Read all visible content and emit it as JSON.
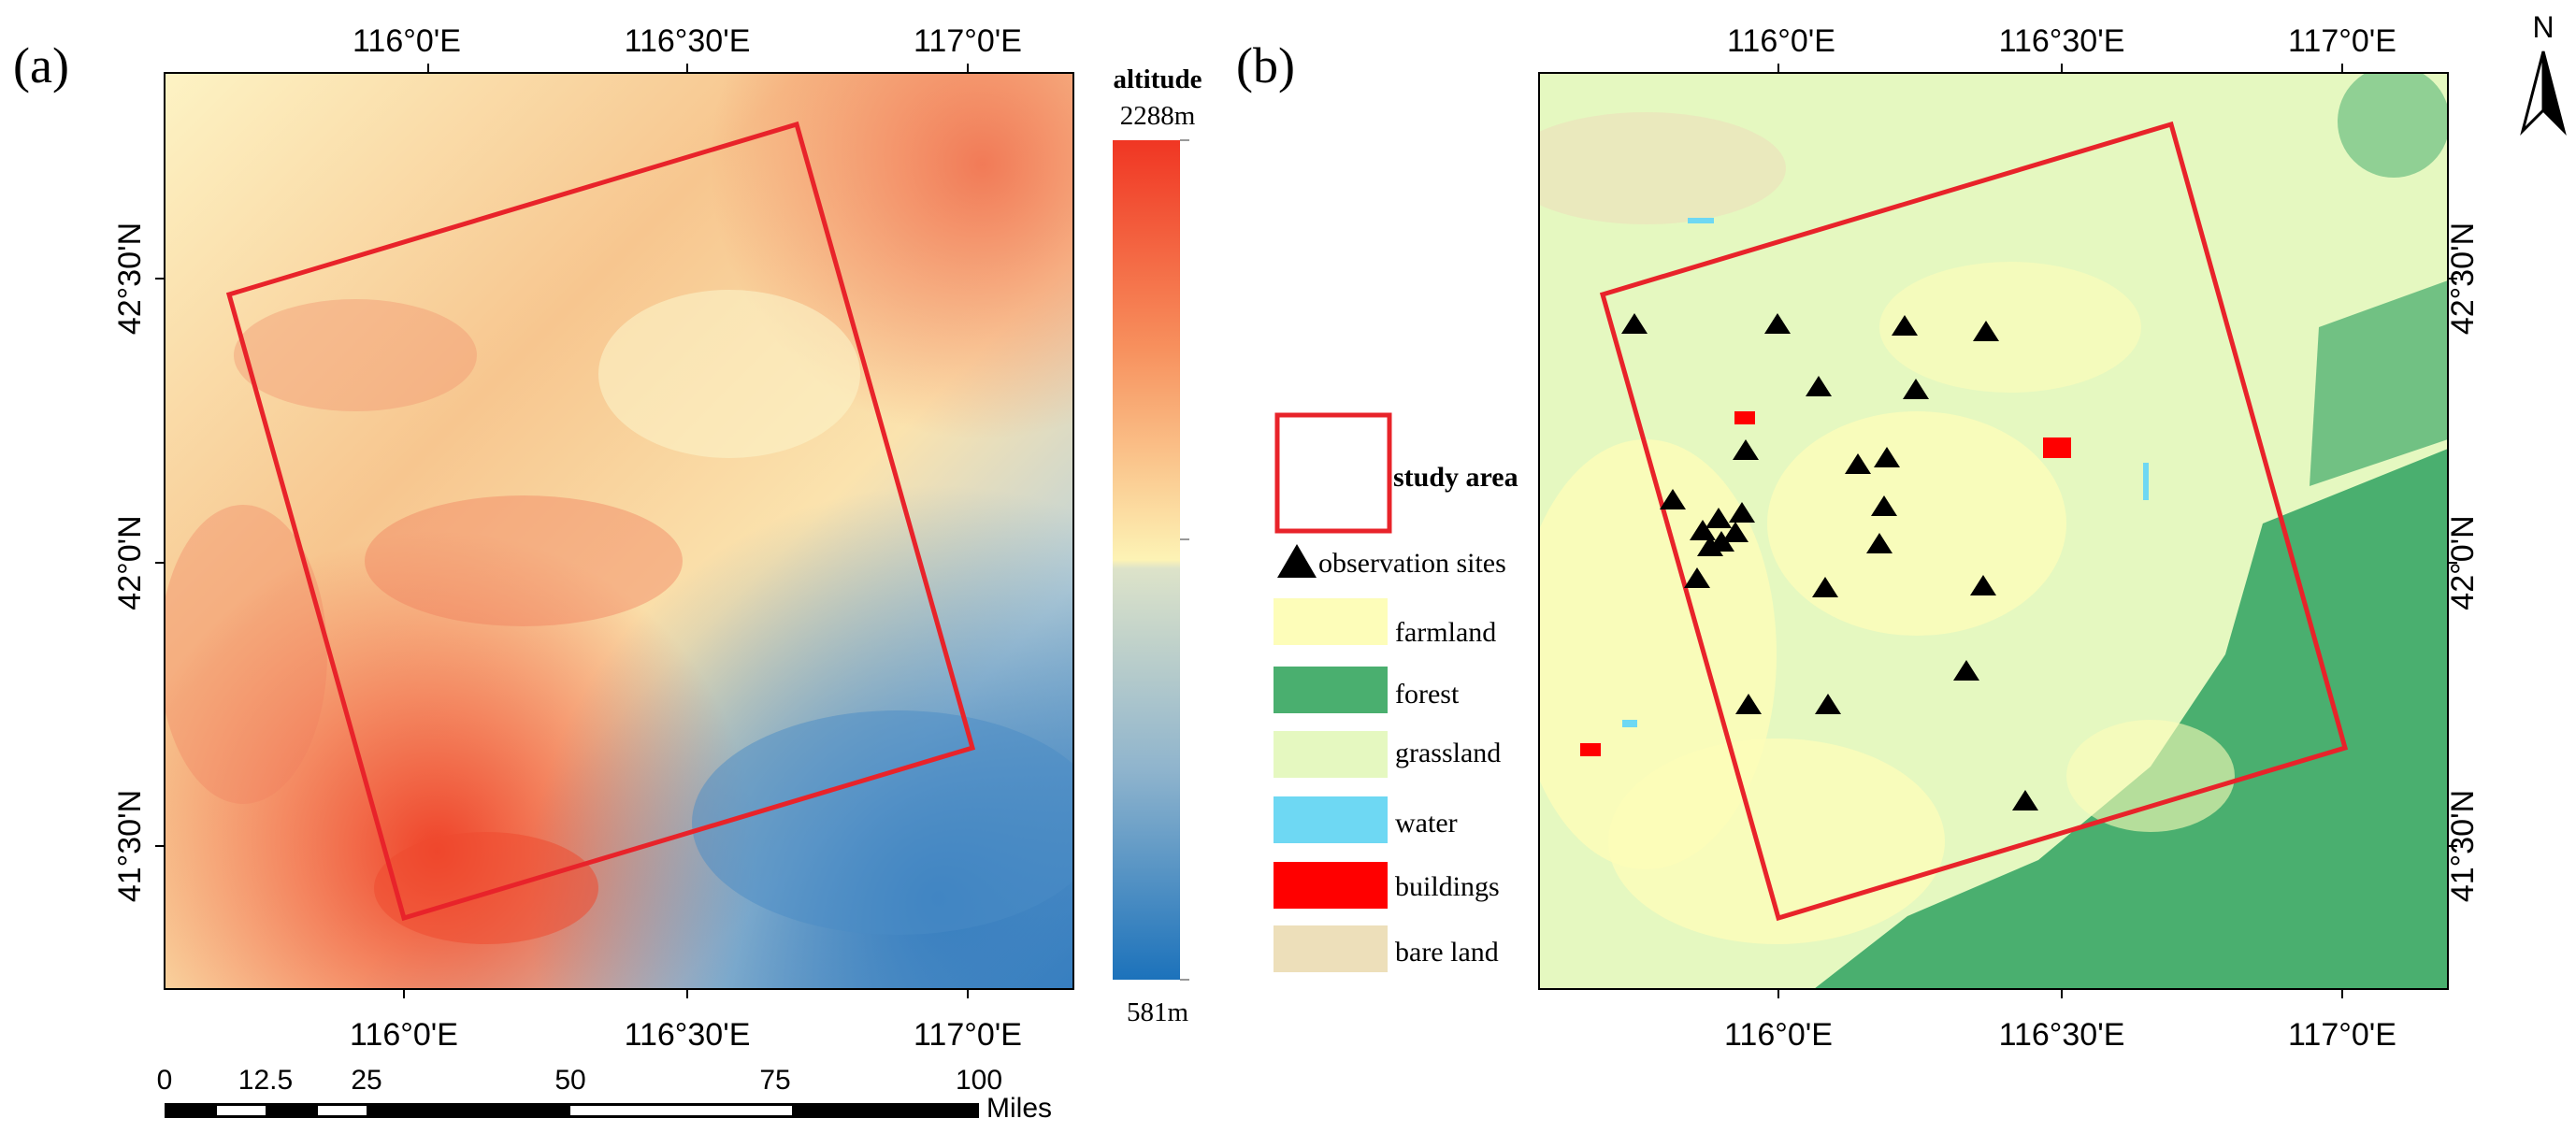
{
  "panel_a": {
    "label": "(a)",
    "top_ticks": [
      "116°0'E",
      "116°30'E",
      "117°0'E"
    ],
    "bottom_ticks": [
      "116°0'E",
      "116°30'E",
      "117°0'E"
    ],
    "left_ticks": [
      "42°30'N",
      "42°0'N",
      "41°30'N"
    ],
    "colorbar": {
      "title": "altitude",
      "max_label": "2288m",
      "min_label": "581m"
    },
    "scale_bar": {
      "labels": [
        "0",
        "12.5",
        "25",
        "50",
        "75",
        "100"
      ],
      "unit": "Miles"
    }
  },
  "panel_b": {
    "label": "(b)",
    "top_ticks": [
      "116°0'E",
      "116°30'E",
      "117°0'E"
    ],
    "bottom_ticks": [
      "116°0'E",
      "116°30'E",
      "117°0'E"
    ],
    "right_ticks": [
      "42°30'N",
      "42°0'N",
      "41°30'N"
    ],
    "north_label": "N",
    "legend": {
      "study_area": "study area",
      "observation_sites": "observation sites",
      "classes": [
        {
          "label": "farmland",
          "color": "#FDFDB9"
        },
        {
          "label": "forest",
          "color": "#4AAF6F"
        },
        {
          "label": "grassland",
          "color": "#E5F8C0"
        },
        {
          "label": "water",
          "color": "#6ED8F3"
        },
        {
          "label": "buildings",
          "color": "#FF0000"
        },
        {
          "label": "bare land",
          "color": "#EDDFBA"
        }
      ]
    }
  },
  "colors": {
    "study_area_outline": "#E8232A",
    "elevation_high": "#F03623",
    "elevation_mid": "#FDF7C0",
    "elevation_low": "#2D78BD"
  }
}
